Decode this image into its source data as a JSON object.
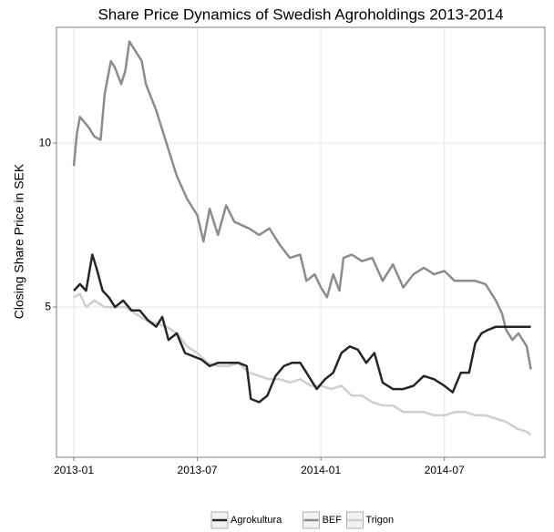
{
  "chart_data": {
    "type": "line",
    "title": "Share Price Dynamics of Swedish Agroholdings 2013-2014",
    "y_label": "Closing Share Price in SEK",
    "xlim": [
      -0.84,
      22.88
    ],
    "xticks": [
      {
        "value": 0,
        "label": "2013-01"
      },
      {
        "value": 6,
        "label": "2013-07"
      },
      {
        "value": 12,
        "label": "2014-01"
      },
      {
        "value": 18,
        "label": "2014-07"
      }
    ],
    "ylim": [
      0.42,
      13.53
    ],
    "yticks": [
      5,
      10
    ],
    "grid": true,
    "legend": "bottom",
    "series": [
      {
        "name": "Agrokultura",
        "color": "#262626",
        "x": [
          0,
          0.3,
          0.6,
          0.9,
          1.1,
          1.4,
          1.7,
          2,
          2.4,
          2.8,
          3.2,
          3.6,
          4,
          4.3,
          4.6,
          5,
          5.4,
          5.8,
          6.2,
          6.6,
          7,
          7.5,
          8,
          8.4,
          8.6,
          9,
          9.4,
          9.8,
          10.2,
          10.6,
          11,
          11.4,
          11.8,
          12.2,
          12.6,
          13,
          13.4,
          13.8,
          14.2,
          14.6,
          15,
          15.5,
          16,
          16.5,
          17,
          17.5,
          18,
          18.4,
          18.8,
          19.2,
          19.5,
          19.8,
          20.1,
          20.5,
          21,
          22.2
        ],
        "values": [
          5.5,
          5.7,
          5.5,
          6.6,
          6.2,
          5.5,
          5.3,
          5.0,
          5.2,
          4.9,
          4.9,
          4.6,
          4.4,
          4.7,
          4.0,
          4.2,
          3.6,
          3.5,
          3.4,
          3.2,
          3.3,
          3.3,
          3.3,
          3.2,
          2.2,
          2.1,
          2.3,
          2.9,
          3.2,
          3.3,
          3.3,
          2.9,
          2.5,
          2.8,
          3.0,
          3.6,
          3.8,
          3.7,
          3.3,
          3.6,
          2.7,
          2.5,
          2.5,
          2.6,
          2.9,
          2.8,
          2.6,
          2.4,
          3.0,
          3.0,
          3.9,
          4.2,
          4.3,
          4.4,
          4.4,
          4.4
        ]
      },
      {
        "name": "BEF",
        "color": "#8c8c8c",
        "x": [
          0,
          0.15,
          0.3,
          0.7,
          1,
          1.3,
          1.5,
          1.8,
          2,
          2.3,
          2.5,
          2.7,
          3,
          3.3,
          3.5,
          4,
          4.5,
          5,
          5.5,
          6,
          6.3,
          6.6,
          7,
          7.4,
          7.8,
          8.5,
          9,
          9.5,
          10,
          10.5,
          11,
          11.3,
          11.7,
          12,
          12.3,
          12.6,
          12.9,
          13.1,
          13.5,
          14,
          14.5,
          15,
          15.5,
          16,
          16.5,
          17,
          17.5,
          18,
          18.5,
          19,
          19.5,
          20,
          20.5,
          20.8,
          21,
          21.3,
          21.6,
          22,
          22.2
        ],
        "values": [
          9.3,
          10.3,
          10.8,
          10.5,
          10.2,
          10.1,
          11.5,
          12.5,
          12.3,
          11.8,
          12.2,
          13.1,
          12.8,
          12.5,
          11.8,
          11.0,
          10.0,
          9.0,
          8.3,
          7.8,
          7.0,
          8.0,
          7.2,
          8.1,
          7.6,
          7.4,
          7.2,
          7.4,
          6.9,
          6.5,
          6.6,
          5.8,
          6.0,
          5.6,
          5.3,
          6.0,
          5.5,
          6.5,
          6.6,
          6.4,
          6.5,
          5.8,
          6.3,
          5.6,
          6.0,
          6.2,
          6.0,
          6.1,
          5.8,
          5.8,
          5.8,
          5.7,
          5.2,
          4.8,
          4.3,
          4.0,
          4.2,
          3.8,
          3.1
        ]
      },
      {
        "name": "Trigon",
        "color": "#cfcfcf",
        "x": [
          0,
          0.3,
          0.6,
          1,
          1.5,
          2,
          2.5,
          3,
          3.5,
          4,
          4.5,
          5,
          5.5,
          6,
          6.5,
          7,
          7.5,
          8,
          8.5,
          9,
          9.5,
          10,
          10.5,
          11,
          11.5,
          12,
          12.5,
          13,
          13.5,
          14,
          14.5,
          15,
          15.5,
          16,
          16.5,
          17,
          17.5,
          18,
          18.5,
          19,
          19.5,
          20,
          20.5,
          21,
          21.5,
          22,
          22.2
        ],
        "values": [
          5.3,
          5.4,
          5.0,
          5.2,
          5.0,
          5.0,
          5.0,
          4.8,
          4.6,
          4.5,
          4.4,
          4.2,
          3.8,
          3.6,
          3.3,
          3.2,
          3.2,
          3.3,
          3.0,
          2.9,
          2.8,
          2.8,
          2.7,
          2.8,
          2.6,
          2.6,
          2.5,
          2.6,
          2.3,
          2.3,
          2.1,
          2.0,
          2.0,
          1.8,
          1.8,
          1.8,
          1.7,
          1.7,
          1.8,
          1.8,
          1.7,
          1.7,
          1.6,
          1.5,
          1.3,
          1.2,
          1.1
        ]
      }
    ]
  }
}
